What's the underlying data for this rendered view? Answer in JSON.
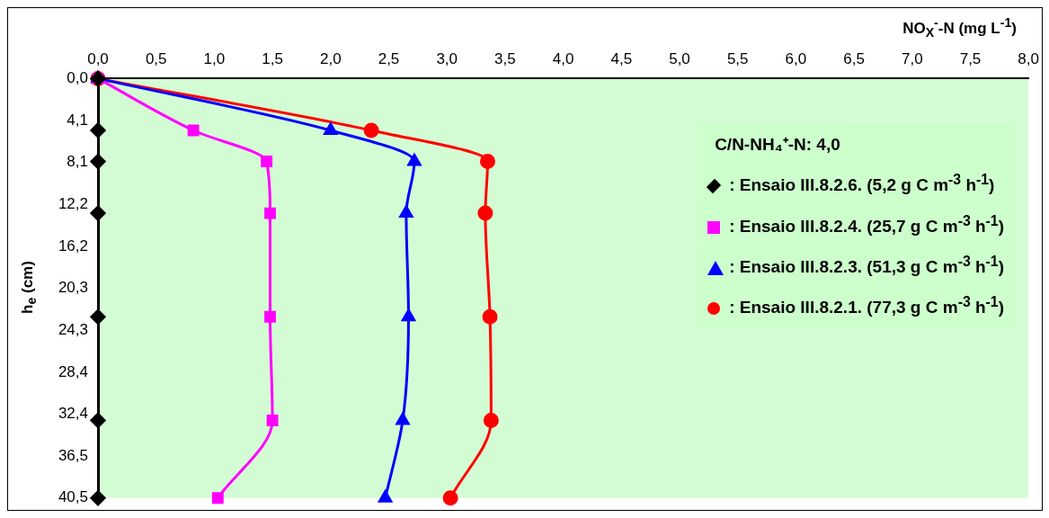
{
  "chart_data": {
    "type": "line",
    "xlabel": "NO$_{X}$$^{-}$-N (mg L$^{-1}$)",
    "ylabel": "h$_{e}$ (cm)",
    "legend_title": "C/N-NH₄⁺-N: 4,0",
    "legend": "top right",
    "grid": false,
    "xlim": [
      0,
      8
    ],
    "xticks": [
      {
        "value": 0,
        "label": "0,0"
      },
      {
        "value": 0.5,
        "label": "0,5"
      },
      {
        "value": 1,
        "label": "1,0"
      },
      {
        "value": 1.5,
        "label": "1,5"
      },
      {
        "value": 2,
        "label": "2,0"
      },
      {
        "value": 2.5,
        "label": "2,5"
      },
      {
        "value": 3,
        "label": "3,0"
      },
      {
        "value": 3.5,
        "label": "3,5"
      },
      {
        "value": 4,
        "label": "4,0"
      },
      {
        "value": 4.5,
        "label": "4,5"
      },
      {
        "value": 5,
        "label": "5,0"
      },
      {
        "value": 5.5,
        "label": "5,5"
      },
      {
        "value": 6,
        "label": "6,0"
      },
      {
        "value": 6.5,
        "label": "6,5"
      },
      {
        "value": 7,
        "label": "7,0"
      },
      {
        "value": 7.5,
        "label": "7,5"
      },
      {
        "value": 8,
        "label": "8,0"
      }
    ],
    "ylim": [
      40.5,
      0
    ],
    "yticks": [
      {
        "value": 0,
        "label": "0,0"
      },
      {
        "value": 4.05,
        "label": "4,1"
      },
      {
        "value": 8.1,
        "label": "8,1"
      },
      {
        "value": 12.15,
        "label": "12,2"
      },
      {
        "value": 16.2,
        "label": "16,2"
      },
      {
        "value": 20.25,
        "label": "20,3"
      },
      {
        "value": 24.3,
        "label": "24,3"
      },
      {
        "value": 28.35,
        "label": "28,4"
      },
      {
        "value": 32.4,
        "label": "32,4"
      },
      {
        "value": 36.45,
        "label": "36,5"
      },
      {
        "value": 40.5,
        "label": "40,5"
      }
    ],
    "series": [
      {
        "name": ": Ensaio III.8.2.6. (5,2 g C m$^{-3}$ h$^{-1}$)",
        "type": "scatter",
        "marker": "diamond",
        "color": "#000000",
        "x": [
          0,
          0,
          0,
          0,
          0,
          0,
          0
        ],
        "values": [
          0,
          5,
          8,
          13,
          23,
          33,
          40.5
        ]
      },
      {
        "name": ": Ensaio III.8.2.4. (25,7 g C m$^{-3}$ h$^{-1}$)",
        "type": "line",
        "marker": "square",
        "color": "#ff00ff",
        "x": [
          0,
          0.82,
          1.45,
          1.48,
          1.48,
          1.5,
          1.03
        ],
        "values": [
          0,
          5,
          8,
          13,
          23,
          33,
          40.5
        ]
      },
      {
        "name": ": Ensaio III.8.2.3. (51,3 g C m$^{-3}$ h$^{-1}$)",
        "type": "line",
        "marker": "triangle",
        "color": "#0000ff",
        "x": [
          0,
          2.0,
          2.72,
          2.65,
          2.67,
          2.62,
          2.47
        ],
        "values": [
          0,
          5,
          8,
          13,
          23,
          33,
          40.5
        ]
      },
      {
        "name": ": Ensaio III.8.2.1. (77,3 g C m$^{-3}$ h$^{-1}$)",
        "type": "line",
        "marker": "circle",
        "color": "#ff0000",
        "x": [
          0,
          2.35,
          3.35,
          3.33,
          3.37,
          3.38,
          3.03
        ],
        "values": [
          0,
          5,
          8,
          13,
          23,
          33,
          40.5
        ]
      }
    ]
  }
}
